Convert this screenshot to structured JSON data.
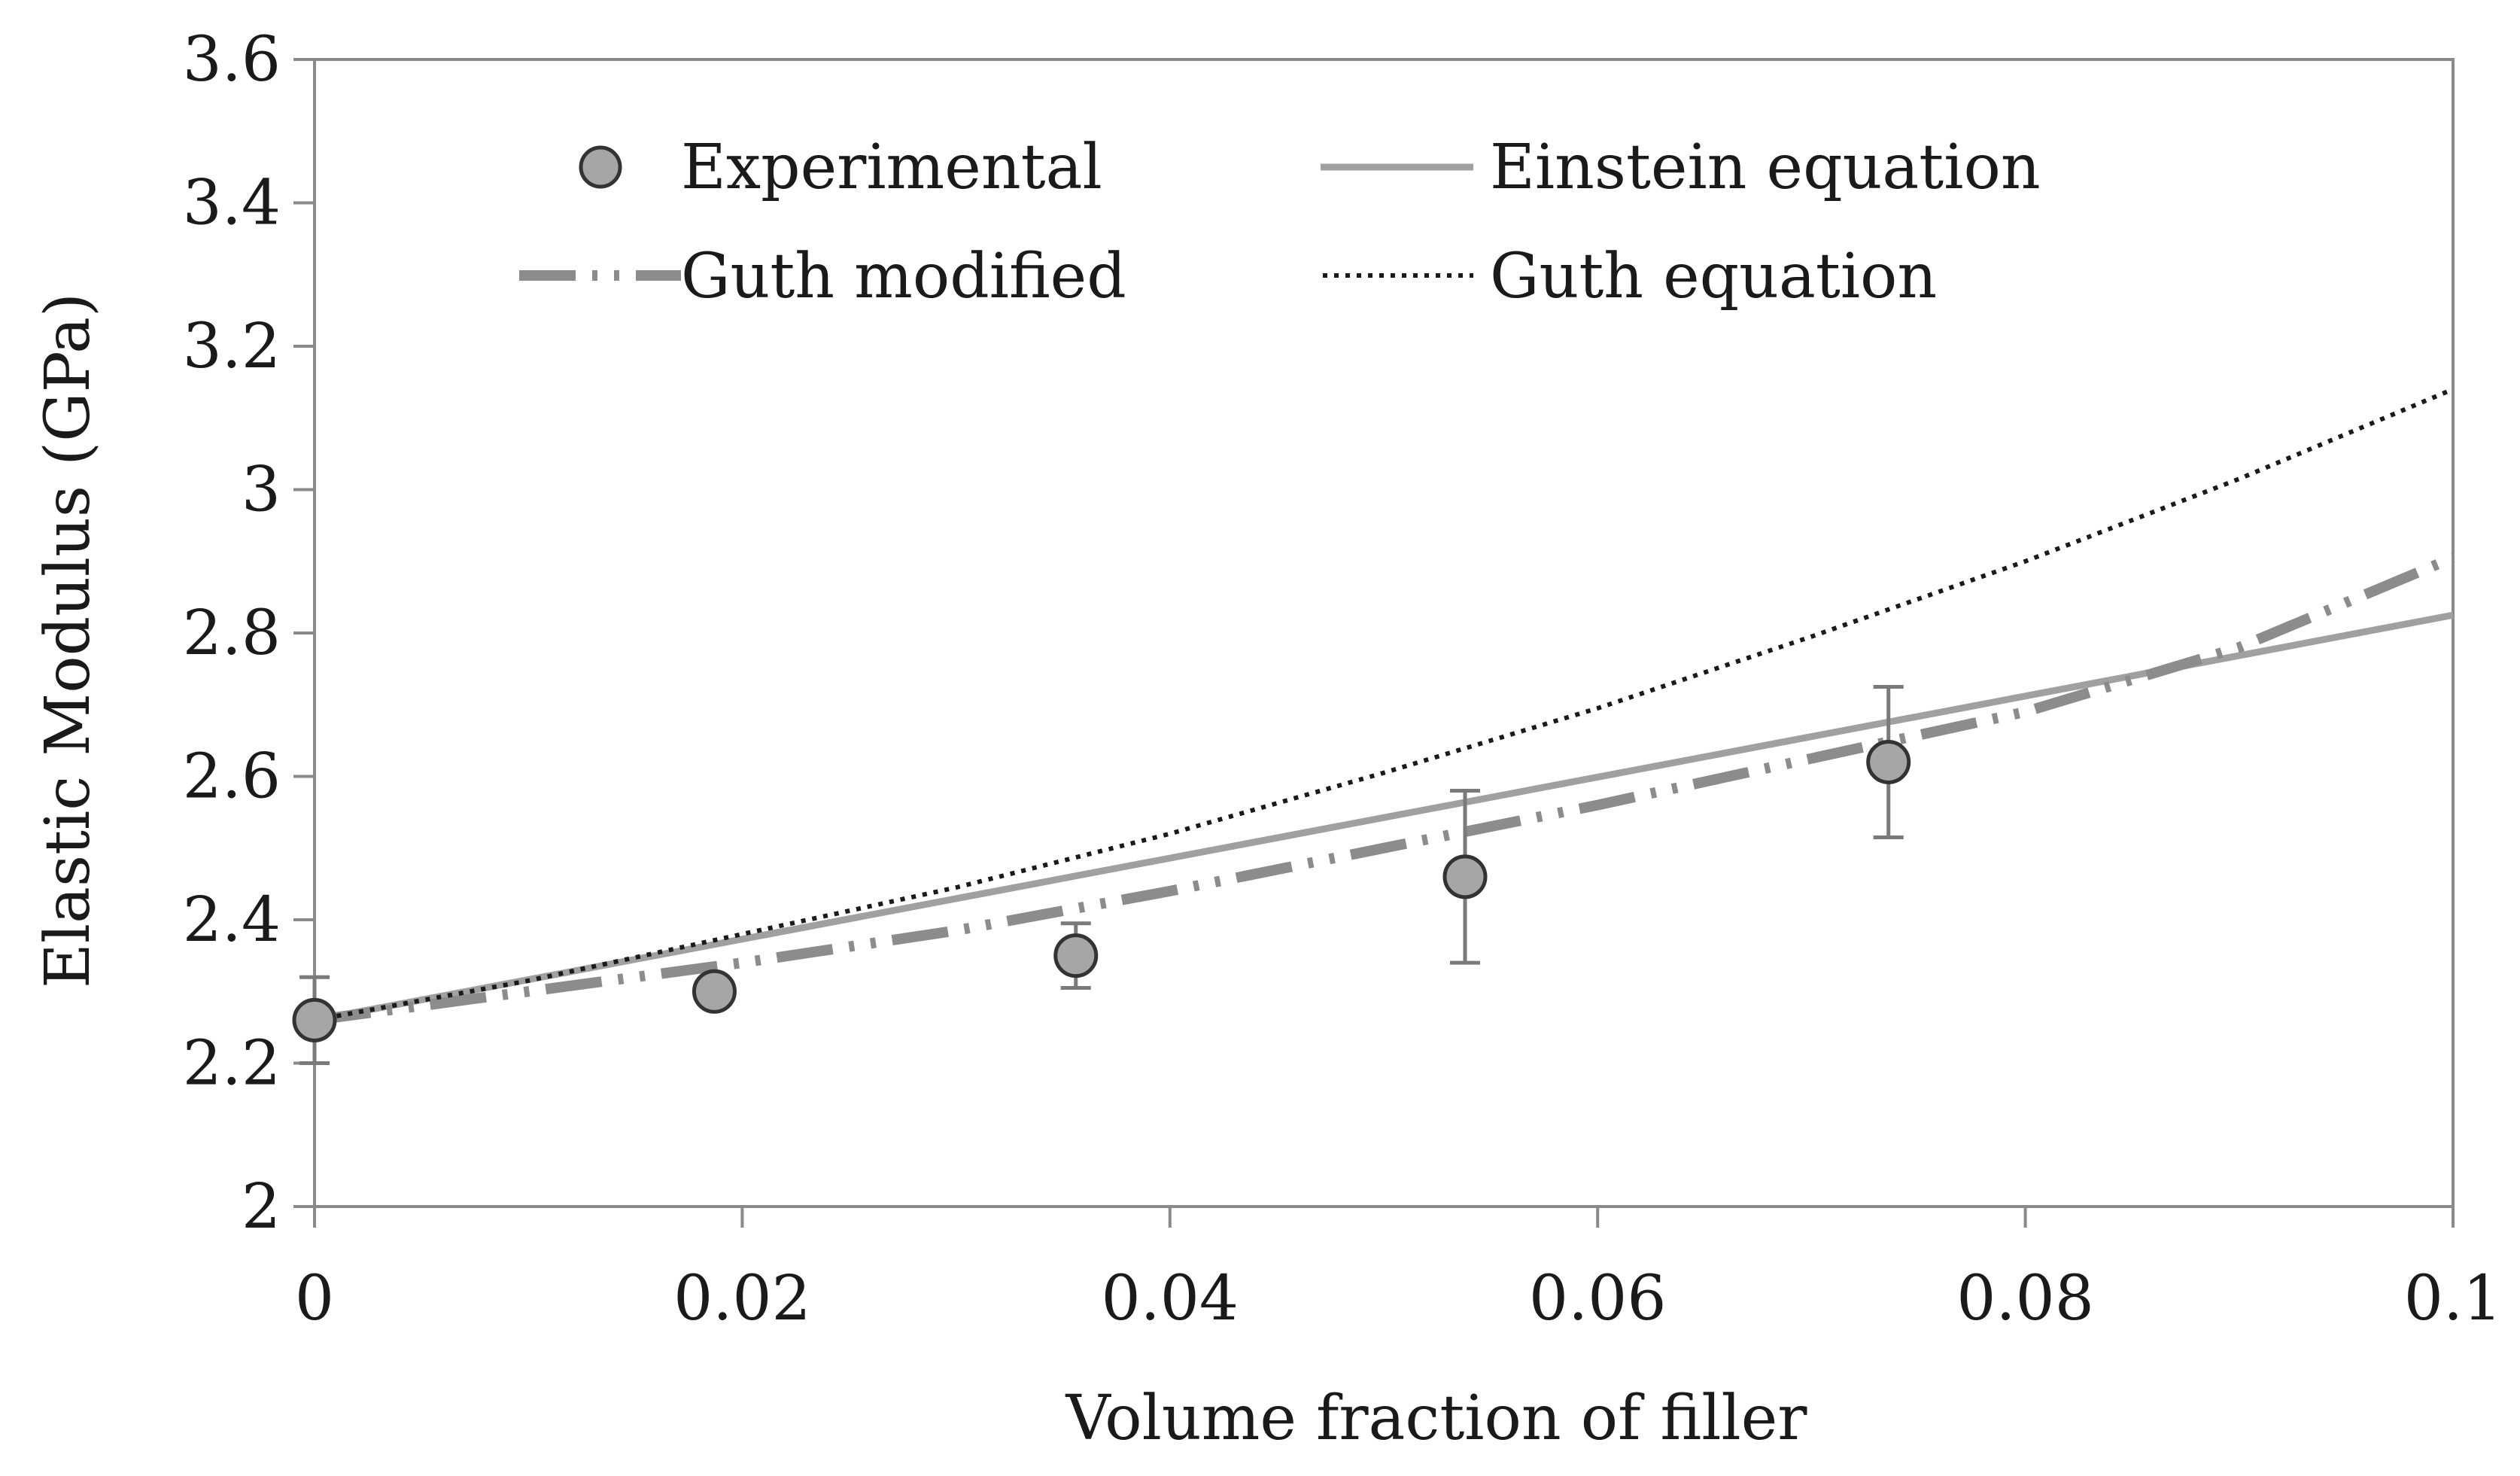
{
  "chart_data": {
    "type": "line",
    "title": "",
    "xlabel": "Volume fraction of filler",
    "ylabel": "Elastic Modulus (GPa)",
    "xlim": [
      0,
      0.1
    ],
    "ylim": [
      2,
      3.6
    ],
    "xticks": [
      0,
      0.02,
      0.04,
      0.06,
      0.08,
      0.1
    ],
    "xtick_labels": [
      "0",
      "0.02",
      "0.04",
      "0.06",
      "0.08",
      "0.1"
    ],
    "yticks": [
      2,
      2.2,
      2.4,
      2.6,
      2.8,
      3,
      3.2,
      3.4,
      3.6
    ],
    "ytick_labels": [
      "2",
      "2.2",
      "2.4",
      "2.6",
      "2.8",
      "3",
      "3.2",
      "3.4",
      "3.6"
    ],
    "grid": false,
    "legend_position": "top",
    "series": [
      {
        "name": "Experimental",
        "kind": "scatter",
        "color": "#a6a6a6",
        "x": [
          0,
          0.0187,
          0.0356,
          0.0538,
          0.0736
        ],
        "y": [
          2.26,
          2.3,
          2.35,
          2.46,
          2.62
        ],
        "error": [
          0.06,
          0.0,
          0.045,
          0.12,
          0.105
        ]
      },
      {
        "name": "Einstein equation",
        "kind": "line",
        "style": "solid",
        "color": "#a0a0a0",
        "x": [
          0,
          0.1
        ],
        "y": [
          2.26,
          2.825
        ]
      },
      {
        "name": "Guth modified",
        "kind": "line",
        "style": "dash-dot-dot",
        "color": "#8c8c8c",
        "x": [
          0,
          0.01,
          0.02,
          0.03,
          0.04,
          0.05,
          0.06,
          0.07,
          0.08,
          0.09,
          0.1
        ],
        "y": [
          2.26,
          2.3,
          2.34,
          2.385,
          2.44,
          2.5,
          2.56,
          2.625,
          2.69,
          2.78,
          2.905
        ]
      },
      {
        "name": "Guth equation",
        "kind": "line",
        "style": "dotted",
        "color": "#1a1a1a",
        "x": [
          0,
          0.01,
          0.02,
          0.03,
          0.04,
          0.05,
          0.06,
          0.07,
          0.08,
          0.09,
          0.1
        ],
        "y": [
          2.26,
          2.315,
          2.38,
          2.445,
          2.52,
          2.605,
          2.695,
          2.795,
          2.9,
          3.015,
          3.14
        ]
      }
    ],
    "legend": [
      "Experimental",
      "Einstein equation",
      "Guth modified",
      "Guth equation"
    ]
  }
}
